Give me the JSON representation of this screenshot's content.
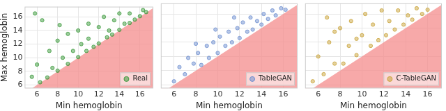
{
  "chart_data": [
    {
      "type": "scatter",
      "x_label": "Min hemoglobin",
      "y_label": "Max hemoglobin",
      "xlim": [
        4.8,
        17.3
      ],
      "xticks": [
        6,
        8,
        10,
        12,
        14,
        16
      ],
      "ylim": [
        5.5,
        17.5
      ],
      "yticks": [
        6,
        8,
        10,
        12,
        14,
        16
      ],
      "grid": true,
      "legend": "lower right",
      "series": [
        {
          "name": "Real",
          "color": "#3c9a3c",
          "x": [
            5.5,
            6,
            6.3,
            7,
            7.2,
            7.5,
            8,
            8,
            8.5,
            9,
            9,
            9.5,
            10,
            10,
            10.3,
            10.8,
            11,
            11,
            11.5,
            12,
            12,
            12.5,
            12.8,
            13,
            13.3,
            13.5,
            14,
            14,
            14.5,
            15,
            15,
            15.5,
            16,
            16.3,
            16.6,
            5.8,
            6.5,
            8.2
          ],
          "values": [
            7.2,
            9,
            6.4,
            7.1,
            11,
            8.5,
            8.1,
            12.5,
            10,
            9.1,
            13.5,
            11,
            10.1,
            14,
            12,
            11,
            15,
            12.8,
            11.6,
            12.1,
            14.5,
            16,
            13,
            14,
            13.4,
            15.5,
            14.1,
            16.5,
            15,
            15.1,
            16.5,
            15.6,
            16.1,
            17,
            16.7,
            16.5,
            15.5,
            14.8
          ]
        }
      ]
    },
    {
      "type": "scatter",
      "x_label": "Min hemoglobin",
      "xlim": [
        4.8,
        17.3
      ],
      "xticks": [
        6,
        8,
        10,
        12,
        14,
        16
      ],
      "ylim": [
        5.5,
        17.5
      ],
      "yticks": [
        6,
        8,
        10,
        12,
        14,
        16
      ],
      "grid": true,
      "legend": "lower right",
      "tick_labels": "x",
      "series": [
        {
          "name": "TableGAN",
          "color": "#6f8fd0",
          "x": [
            6,
            6.5,
            7,
            7.3,
            7.8,
            8.2,
            8.5,
            9,
            9.2,
            9.6,
            10,
            10.2,
            10.7,
            11,
            11.3,
            11.8,
            12,
            12.3,
            12.7,
            13,
            13.2,
            13.6,
            14,
            14.2,
            14.6,
            15,
            15.3,
            15.8,
            16.2,
            8,
            11.5,
            9.8
          ],
          "values": [
            6.5,
            8.5,
            7.5,
            9.8,
            9,
            10.5,
            8.8,
            11.5,
            9.8,
            12,
            10.5,
            12.8,
            11.5,
            13.5,
            12,
            14,
            12.6,
            14.8,
            13.5,
            15.5,
            13.8,
            15,
            14.5,
            16,
            15.3,
            16.5,
            15.8,
            16.8,
            16.6,
            11.8,
            15.5,
            13.8
          ]
        }
      ]
    },
    {
      "type": "scatter",
      "x_label": "Min hemoglobin",
      "xlim": [
        4.8,
        17.3
      ],
      "xticks": [
        6,
        8,
        10,
        12,
        14,
        16
      ],
      "ylim": [
        5.5,
        17.5
      ],
      "yticks": [
        6,
        8,
        10,
        12,
        14,
        16
      ],
      "grid": true,
      "legend": "lower right",
      "tick_labels": "x",
      "series": [
        {
          "name": "C-TableGAN",
          "color": "#c9a33a",
          "x": [
            5.5,
            6,
            6.5,
            7,
            7.5,
            8,
            8.3,
            8.8,
            9,
            9.5,
            10,
            10.3,
            10.8,
            11,
            11.5,
            11.8,
            12.2,
            12.5,
            13,
            13.3,
            13.8,
            14.2,
            14.6,
            15,
            15.5,
            16,
            6.8,
            7.5,
            9.5
          ],
          "values": [
            6.5,
            10,
            7.5,
            12,
            9,
            14,
            9,
            11.5,
            15,
            10.2,
            13,
            16,
            11.5,
            14.5,
            12.3,
            16.5,
            13,
            15,
            13.8,
            16.5,
            14.5,
            15.8,
            15.2,
            16.8,
            16,
            16.6,
            15.5,
            13.5,
            12.5
          ]
        }
      ]
    }
  ]
}
